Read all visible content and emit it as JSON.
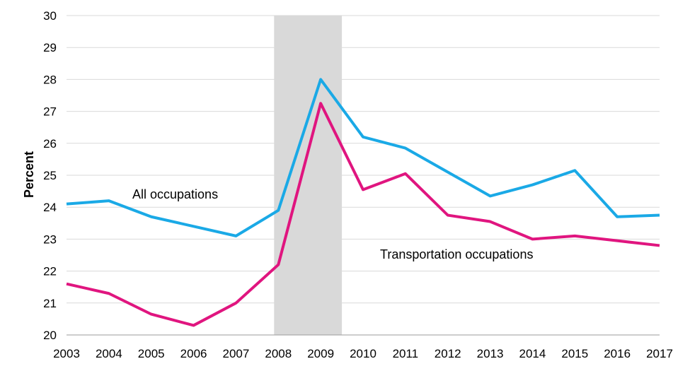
{
  "chart_data": {
    "type": "line",
    "title": "",
    "xlabel": "",
    "ylabel": "Percent",
    "ylim": [
      20,
      30
    ],
    "yticks": [
      "20",
      "21",
      "22",
      "23",
      "24",
      "25",
      "26",
      "27",
      "28",
      "29",
      "30"
    ],
    "categories": [
      "2003",
      "2004",
      "2005",
      "2006",
      "2007",
      "2008",
      "2009",
      "2010",
      "2011",
      "2012",
      "2013",
      "2014",
      "2015",
      "2016",
      "2017"
    ],
    "grid": true,
    "shaded_period": {
      "start": "2007.9",
      "end": "2009.5",
      "color": "#d9d9d9"
    },
    "series": [
      {
        "name": "All occupations",
        "color": "#1aa9e6",
        "values": [
          24.1,
          24.2,
          23.7,
          23.4,
          23.1,
          23.9,
          28.0,
          26.2,
          25.85,
          25.1,
          24.35,
          24.7,
          25.15,
          23.7,
          23.75
        ]
      },
      {
        "name": "Transportation occupations",
        "color": "#e0157f",
        "values": [
          21.6,
          21.3,
          20.65,
          20.3,
          21.0,
          22.2,
          27.25,
          24.55,
          25.05,
          23.75,
          23.55,
          23.0,
          23.1,
          22.95,
          22.8
        ]
      }
    ]
  }
}
